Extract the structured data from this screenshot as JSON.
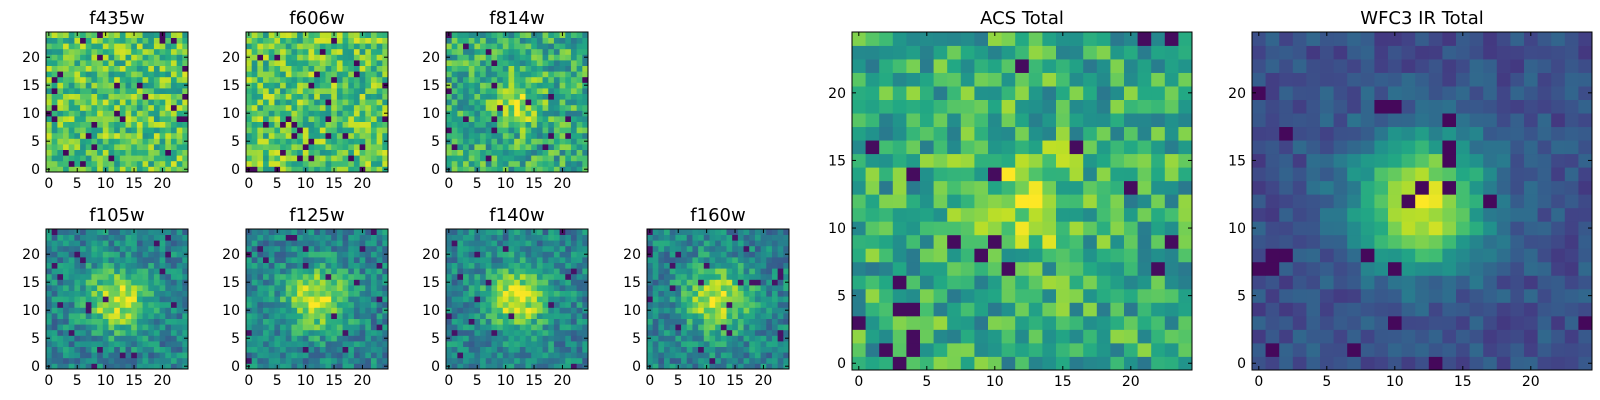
{
  "chart_data": [
    {
      "type": "heatmap",
      "title": "f435w",
      "grid": false,
      "colormap": "viridis",
      "x_range": [
        0,
        24
      ],
      "y_range": [
        0,
        24
      ],
      "xticks": [
        "0",
        "5",
        "10",
        "15",
        "20"
      ],
      "yticks": [
        "0",
        "5",
        "10",
        "15",
        "20"
      ],
      "pattern": "noise"
    },
    {
      "type": "heatmap",
      "title": "f606w",
      "grid": false,
      "colormap": "viridis",
      "x_range": [
        0,
        24
      ],
      "y_range": [
        0,
        24
      ],
      "xticks": [
        "0",
        "5",
        "10",
        "15",
        "20"
      ],
      "yticks": [
        "0",
        "5",
        "10",
        "15",
        "20"
      ],
      "pattern": "noise"
    },
    {
      "type": "heatmap",
      "title": "f814w",
      "grid": false,
      "colormap": "viridis",
      "x_range": [
        0,
        24
      ],
      "y_range": [
        0,
        24
      ],
      "xticks": [
        "0",
        "5",
        "10",
        "15",
        "20"
      ],
      "yticks": [
        "0",
        "5",
        "10",
        "15",
        "20"
      ],
      "pattern": "faint-center"
    },
    {
      "type": "heatmap",
      "title": "f105w",
      "grid": false,
      "colormap": "viridis",
      "x_range": [
        0,
        24
      ],
      "y_range": [
        0,
        24
      ],
      "xticks": [
        "0",
        "5",
        "10",
        "15",
        "20"
      ],
      "yticks": [
        "0",
        "5",
        "10",
        "15",
        "20"
      ],
      "pattern": "bright-center"
    },
    {
      "type": "heatmap",
      "title": "f125w",
      "grid": false,
      "colormap": "viridis",
      "x_range": [
        0,
        24
      ],
      "y_range": [
        0,
        24
      ],
      "xticks": [
        "0",
        "5",
        "10",
        "15",
        "20"
      ],
      "yticks": [
        "0",
        "5",
        "10",
        "15",
        "20"
      ],
      "pattern": "bright-center"
    },
    {
      "type": "heatmap",
      "title": "f140w",
      "grid": false,
      "colormap": "viridis",
      "x_range": [
        0,
        24
      ],
      "y_range": [
        0,
        24
      ],
      "xticks": [
        "0",
        "5",
        "10",
        "15",
        "20"
      ],
      "yticks": [
        "0",
        "5",
        "10",
        "15",
        "20"
      ],
      "pattern": "bright-center"
    },
    {
      "type": "heatmap",
      "title": "f160w",
      "grid": false,
      "colormap": "viridis",
      "x_range": [
        0,
        24
      ],
      "y_range": [
        0,
        24
      ],
      "xticks": [
        "0",
        "5",
        "10",
        "15",
        "20"
      ],
      "yticks": [
        "0",
        "5",
        "10",
        "15",
        "20"
      ],
      "pattern": "bright-center"
    },
    {
      "type": "heatmap",
      "title": "ACS Total",
      "grid": false,
      "colormap": "viridis",
      "x_range": [
        0,
        24
      ],
      "y_range": [
        0,
        24
      ],
      "xticks": [
        "0",
        "5",
        "10",
        "15",
        "20"
      ],
      "yticks": [
        "0",
        "5",
        "10",
        "15",
        "20"
      ],
      "pattern": "faint-center"
    },
    {
      "type": "heatmap",
      "title": "WFC3 IR Total",
      "grid": false,
      "colormap": "viridis",
      "x_range": [
        0,
        24
      ],
      "y_range": [
        0,
        24
      ],
      "xticks": [
        "0",
        "5",
        "10",
        "15",
        "20"
      ],
      "yticks": [
        "0",
        "5",
        "10",
        "15",
        "20"
      ],
      "pattern": "strong-center"
    }
  ]
}
